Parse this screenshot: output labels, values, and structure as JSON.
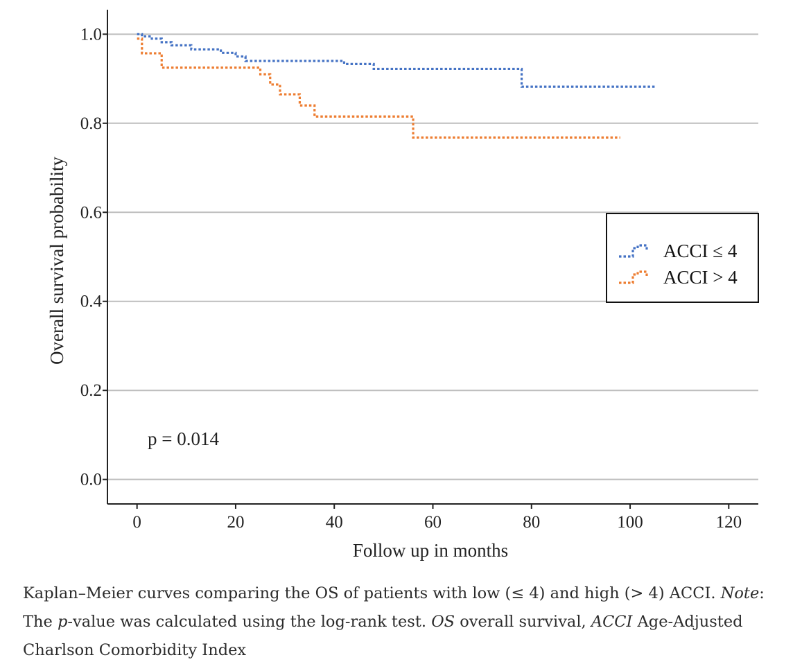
{
  "chart_data": {
    "type": "line",
    "subtype": "kaplan-meier-step",
    "xlabel": "Follow up in months",
    "ylabel": "Overall survival probability",
    "xlim": [
      -6,
      126
    ],
    "ylim": [
      -0.055,
      1.055
    ],
    "x_ticks": [
      0,
      20,
      40,
      60,
      80,
      100,
      120
    ],
    "x_tick_labels": [
      "0",
      "20",
      "40",
      "60",
      "80",
      "100",
      "120"
    ],
    "y_ticks": [
      0.0,
      0.2,
      0.4,
      0.6,
      0.8,
      1.0
    ],
    "y_tick_labels": [
      "0.0",
      "0.2",
      "0.4",
      "0.6",
      "0.8",
      "1.0"
    ],
    "grid": "horizontal",
    "legend_position": "right",
    "annotation": "p = 0.014",
    "series": [
      {
        "name": "ACCI ≤ 4",
        "color": "#4472c4",
        "line_style": "dotted",
        "x": [
          0,
          1,
          3,
          5,
          7,
          11,
          17,
          20,
          22,
          42,
          48,
          78,
          105
        ],
        "y": [
          1.0,
          0.995,
          0.99,
          0.982,
          0.975,
          0.966,
          0.958,
          0.95,
          0.94,
          0.933,
          0.922,
          0.882,
          0.882
        ]
      },
      {
        "name": "ACCI > 4",
        "color": "#ed7d31",
        "line_style": "dotted",
        "x": [
          0,
          1,
          5,
          25,
          27,
          29,
          33,
          36,
          56,
          98
        ],
        "y": [
          0.99,
          0.957,
          0.925,
          0.91,
          0.887,
          0.865,
          0.84,
          0.815,
          0.768,
          0.768
        ]
      }
    ]
  },
  "caption": {
    "part1": "Kaplan–Meier curves comparing the OS of patients with low (≤ 4) and high (> 4) ACCI. ",
    "note_label": "Note",
    "part2": ": The ",
    "p_label": "p",
    "part3": "-value was calculated using the log-rank test. ",
    "os_abbr": "OS",
    "part4": " overall survival, ",
    "acci_abbr": "ACCI",
    "part5": " Age-Adjusted Charlson Comorbidity Index"
  }
}
